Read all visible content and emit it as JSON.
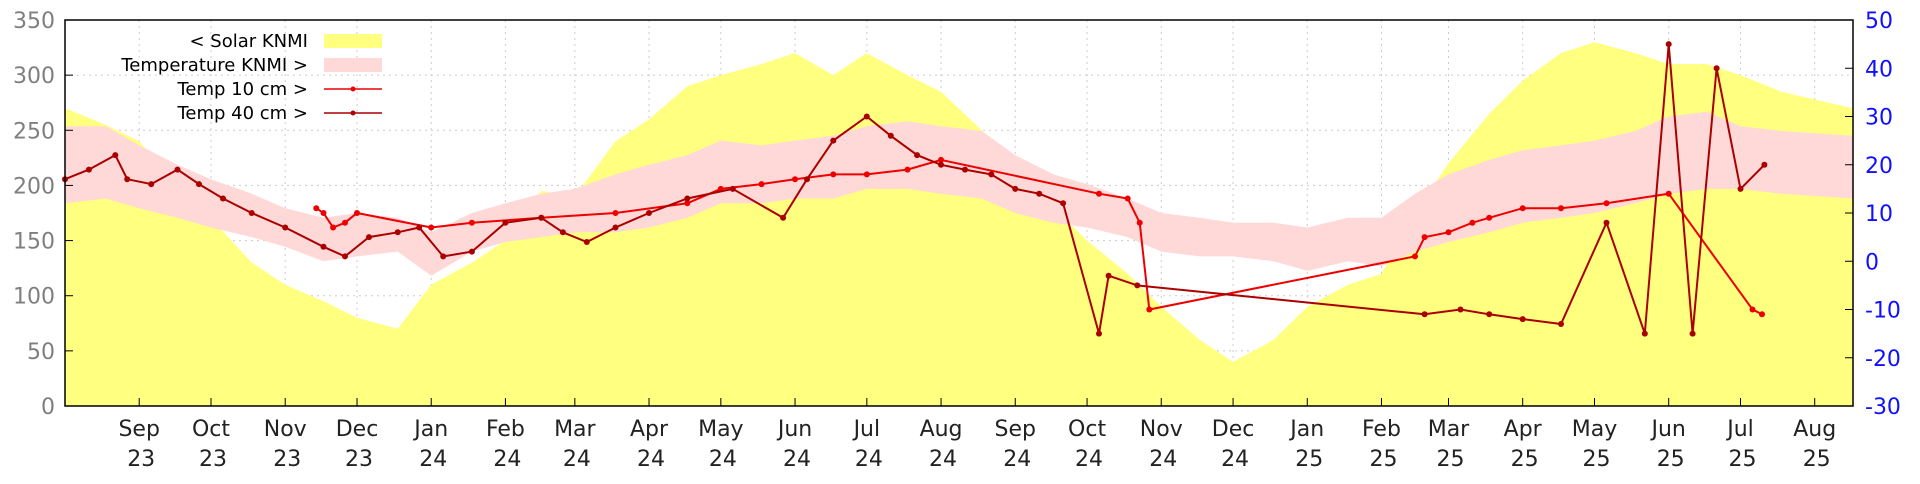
{
  "chart_data": {
    "type": "line",
    "title": "",
    "xlabel": "",
    "ylabel": "",
    "y2label": "",
    "ylim": [
      0,
      350
    ],
    "y2lim": [
      -30,
      50
    ],
    "y_ticks": [
      0,
      50,
      100,
      150,
      200,
      250,
      300,
      350
    ],
    "y2_ticks": [
      -30,
      -20,
      -10,
      0,
      10,
      20,
      30,
      40,
      50
    ],
    "grid": true,
    "legend_position": "top-left",
    "x_ticks": [
      {
        "label": [
          "Sep",
          "23"
        ],
        "date": "2023-09-15"
      },
      {
        "label": [
          "Oct",
          "23"
        ],
        "date": "2023-10-15"
      },
      {
        "label": [
          "Nov",
          "23"
        ],
        "date": "2023-11-15"
      },
      {
        "label": [
          "Dec",
          "23"
        ],
        "date": "2023-12-15"
      },
      {
        "label": [
          "Jan",
          "24"
        ],
        "date": "2024-01-15"
      },
      {
        "label": [
          "Feb",
          "24"
        ],
        "date": "2024-02-15"
      },
      {
        "label": [
          "Mar",
          "24"
        ],
        "date": "2024-03-15"
      },
      {
        "label": [
          "Apr",
          "24"
        ],
        "date": "2024-04-15"
      },
      {
        "label": [
          "May",
          "24"
        ],
        "date": "2024-05-15"
      },
      {
        "label": [
          "Jun",
          "24"
        ],
        "date": "2024-06-15"
      },
      {
        "label": [
          "Jul",
          "24"
        ],
        "date": "2024-07-15"
      },
      {
        "label": [
          "Aug",
          "24"
        ],
        "date": "2024-08-15"
      },
      {
        "label": [
          "Sep",
          "24"
        ],
        "date": "2024-09-15"
      },
      {
        "label": [
          "Oct",
          "24"
        ],
        "date": "2024-10-15"
      },
      {
        "label": [
          "Nov",
          "24"
        ],
        "date": "2024-11-15"
      },
      {
        "label": [
          "Dec",
          "24"
        ],
        "date": "2024-12-15"
      },
      {
        "label": [
          "Jan",
          "25"
        ],
        "date": "2025-01-15"
      },
      {
        "label": [
          "Feb",
          "25"
        ],
        "date": "2025-02-15"
      },
      {
        "label": [
          "Mar",
          "25"
        ],
        "date": "2025-03-15"
      },
      {
        "label": [
          "Apr",
          "25"
        ],
        "date": "2025-04-15"
      },
      {
        "label": [
          "May",
          "25"
        ],
        "date": "2025-05-15"
      },
      {
        "label": [
          "Jun",
          "25"
        ],
        "date": "2025-06-15"
      },
      {
        "label": [
          "Jul",
          "25"
        ],
        "date": "2025-07-15"
      },
      {
        "label": [
          "Aug",
          "25"
        ],
        "date": "2025-08-15"
      }
    ],
    "x_range": [
      "2023-08-15",
      "2025-08-31"
    ],
    "series": [
      {
        "name": "< Solar KNMI",
        "axis": "left",
        "style": "area",
        "color": "#ffff80",
        "points": [
          [
            "2023-08-15",
            270
          ],
          [
            "2023-09-01",
            255
          ],
          [
            "2023-09-15",
            240
          ],
          [
            "2023-10-01",
            200
          ],
          [
            "2023-10-15",
            170
          ],
          [
            "2023-11-01",
            130
          ],
          [
            "2023-11-15",
            110
          ],
          [
            "2023-12-01",
            95
          ],
          [
            "2023-12-15",
            80
          ],
          [
            "2024-01-01",
            70
          ],
          [
            "2024-01-15",
            110
          ],
          [
            "2024-02-01",
            130
          ],
          [
            "2024-02-15",
            150
          ],
          [
            "2024-03-01",
            195
          ],
          [
            "2024-03-15",
            190
          ],
          [
            "2024-04-01",
            240
          ],
          [
            "2024-04-15",
            260
          ],
          [
            "2024-05-01",
            290
          ],
          [
            "2024-05-15",
            300
          ],
          [
            "2024-06-01",
            310
          ],
          [
            "2024-06-15",
            320
          ],
          [
            "2024-07-01",
            300
          ],
          [
            "2024-07-15",
            320
          ],
          [
            "2024-08-01",
            300
          ],
          [
            "2024-08-15",
            285
          ],
          [
            "2024-09-01",
            250
          ],
          [
            "2024-09-15",
            215
          ],
          [
            "2024-10-01",
            180
          ],
          [
            "2024-10-15",
            150
          ],
          [
            "2024-11-01",
            120
          ],
          [
            "2024-11-15",
            90
          ],
          [
            "2024-12-01",
            60
          ],
          [
            "2024-12-15",
            40
          ],
          [
            "2025-01-01",
            60
          ],
          [
            "2025-01-15",
            90
          ],
          [
            "2025-02-01",
            110
          ],
          [
            "2025-02-15",
            120
          ],
          [
            "2025-03-01",
            175
          ],
          [
            "2025-03-15",
            220
          ],
          [
            "2025-04-01",
            265
          ],
          [
            "2025-04-15",
            295
          ],
          [
            "2025-05-01",
            320
          ],
          [
            "2025-05-15",
            330
          ],
          [
            "2025-06-01",
            320
          ],
          [
            "2025-06-15",
            310
          ],
          [
            "2025-07-01",
            310
          ],
          [
            "2025-07-15",
            300
          ],
          [
            "2025-08-01",
            285
          ],
          [
            "2025-08-31",
            270
          ]
        ]
      },
      {
        "name": "Temperature KNMI >",
        "axis": "right",
        "style": "band",
        "color": "#ffd8d8",
        "points": [
          [
            "2023-08-15",
            12,
            28
          ],
          [
            "2023-09-01",
            13,
            28
          ],
          [
            "2023-09-15",
            11,
            24
          ],
          [
            "2023-10-01",
            9,
            20
          ],
          [
            "2023-10-15",
            7,
            17
          ],
          [
            "2023-11-01",
            5,
            14
          ],
          [
            "2023-11-15",
            3,
            11
          ],
          [
            "2023-12-01",
            0,
            9
          ],
          [
            "2023-12-15",
            1,
            10
          ],
          [
            "2024-01-01",
            2,
            9
          ],
          [
            "2024-01-15",
            -3,
            6
          ],
          [
            "2024-02-01",
            2,
            10
          ],
          [
            "2024-02-15",
            4,
            12
          ],
          [
            "2024-03-01",
            5,
            14
          ],
          [
            "2024-03-15",
            6,
            15
          ],
          [
            "2024-04-01",
            6,
            18
          ],
          [
            "2024-04-15",
            7,
            20
          ],
          [
            "2024-05-01",
            9,
            22
          ],
          [
            "2024-05-15",
            12,
            25
          ],
          [
            "2024-06-01",
            12,
            24
          ],
          [
            "2024-06-15",
            13,
            25
          ],
          [
            "2024-07-01",
            13,
            26
          ],
          [
            "2024-07-15",
            15,
            28
          ],
          [
            "2024-08-01",
            15,
            29
          ],
          [
            "2024-08-15",
            14,
            28
          ],
          [
            "2024-09-01",
            13,
            27
          ],
          [
            "2024-09-15",
            10,
            22
          ],
          [
            "2024-10-01",
            8,
            18
          ],
          [
            "2024-10-15",
            7,
            16
          ],
          [
            "2024-11-01",
            5,
            13
          ],
          [
            "2024-11-15",
            2,
            10
          ],
          [
            "2024-12-01",
            1,
            9
          ],
          [
            "2024-12-15",
            1,
            8
          ],
          [
            "2025-01-01",
            0,
            8
          ],
          [
            "2025-01-15",
            -2,
            7
          ],
          [
            "2025-02-01",
            0,
            9
          ],
          [
            "2025-02-15",
            -1,
            9
          ],
          [
            "2025-03-01",
            2,
            14
          ],
          [
            "2025-03-15",
            4,
            18
          ],
          [
            "2025-04-01",
            6,
            21
          ],
          [
            "2025-04-15",
            8,
            23
          ],
          [
            "2025-05-01",
            9,
            24
          ],
          [
            "2025-05-15",
            10,
            25
          ],
          [
            "2025-06-01",
            12,
            27
          ],
          [
            "2025-06-15",
            14,
            30
          ],
          [
            "2025-07-01",
            15,
            31
          ],
          [
            "2025-07-15",
            15,
            28
          ],
          [
            "2025-08-01",
            14,
            27
          ],
          [
            "2025-08-31",
            13,
            26
          ]
        ]
      },
      {
        "name": "Temp 10 cm >",
        "axis": "right",
        "style": "line-points",
        "color": "#ee0000",
        "points": [
          [
            "2023-11-28",
            11
          ],
          [
            "2023-12-01",
            10
          ],
          [
            "2023-12-05",
            7
          ],
          [
            "2023-12-10",
            8
          ],
          [
            "2023-12-15",
            10
          ],
          [
            "2024-01-15",
            7
          ],
          [
            "2024-02-01",
            8
          ],
          [
            "2024-03-01",
            9
          ],
          [
            "2024-04-01",
            10
          ],
          [
            "2024-05-01",
            12
          ],
          [
            "2024-05-15",
            15
          ],
          [
            "2024-06-01",
            16
          ],
          [
            "2024-06-15",
            17
          ],
          [
            "2024-07-01",
            18
          ],
          [
            "2024-07-15",
            18
          ],
          [
            "2024-08-01",
            19
          ],
          [
            "2024-08-15",
            21
          ],
          [
            "2024-10-20",
            14
          ],
          [
            "2024-11-01",
            13
          ],
          [
            "2024-11-06",
            8
          ],
          [
            "2024-11-10",
            -10
          ],
          [
            "2025-03-01",
            1
          ],
          [
            "2025-03-05",
            5
          ],
          [
            "2025-03-15",
            6
          ],
          [
            "2025-03-25",
            8
          ],
          [
            "2025-04-01",
            9
          ],
          [
            "2025-04-15",
            11
          ],
          [
            "2025-05-01",
            11
          ],
          [
            "2025-05-20",
            12
          ],
          [
            "2025-06-15",
            14
          ],
          [
            "2025-07-20",
            -10
          ],
          [
            "2025-07-24",
            -11
          ]
        ]
      },
      {
        "name": "Temp 40 cm >",
        "axis": "right",
        "style": "line-points",
        "color": "#aa0000",
        "points": [
          [
            "2023-08-15",
            17
          ],
          [
            "2023-08-25",
            19
          ],
          [
            "2023-09-05",
            22
          ],
          [
            "2023-09-10",
            17
          ],
          [
            "2023-09-20",
            16
          ],
          [
            "2023-10-01",
            19
          ],
          [
            "2023-10-10",
            16
          ],
          [
            "2023-10-20",
            13
          ],
          [
            "2023-11-01",
            10
          ],
          [
            "2023-11-15",
            7
          ],
          [
            "2023-12-01",
            3
          ],
          [
            "2023-12-10",
            1
          ],
          [
            "2023-12-20",
            5
          ],
          [
            "2024-01-01",
            6
          ],
          [
            "2024-01-10",
            7
          ],
          [
            "2024-01-20",
            1
          ],
          [
            "2024-02-01",
            2
          ],
          [
            "2024-02-15",
            8
          ],
          [
            "2024-03-01",
            9
          ],
          [
            "2024-03-10",
            6
          ],
          [
            "2024-03-20",
            4
          ],
          [
            "2024-04-01",
            7
          ],
          [
            "2024-04-15",
            10
          ],
          [
            "2024-05-01",
            13
          ],
          [
            "2024-05-20",
            15
          ],
          [
            "2024-06-10",
            9
          ],
          [
            "2024-06-20",
            17
          ],
          [
            "2024-07-01",
            25
          ],
          [
            "2024-07-15",
            30
          ],
          [
            "2024-07-25",
            26
          ],
          [
            "2024-08-05",
            22
          ],
          [
            "2024-08-15",
            20
          ],
          [
            "2024-08-25",
            19
          ],
          [
            "2024-09-05",
            18
          ],
          [
            "2024-09-15",
            15
          ],
          [
            "2024-09-25",
            14
          ],
          [
            "2024-10-05",
            12
          ],
          [
            "2024-10-20",
            -15
          ],
          [
            "2024-10-24",
            -3
          ],
          [
            "2024-11-05",
            -5
          ],
          [
            "2025-03-05",
            -11
          ],
          [
            "2025-03-20",
            -10
          ],
          [
            "2025-04-01",
            -11
          ],
          [
            "2025-04-15",
            -12
          ],
          [
            "2025-05-01",
            -13
          ],
          [
            "2025-05-20",
            8
          ],
          [
            "2025-06-05",
            -15
          ],
          [
            "2025-06-15",
            45
          ],
          [
            "2025-06-25",
            -15
          ],
          [
            "2025-07-05",
            40
          ],
          [
            "2025-07-15",
            15
          ],
          [
            "2025-07-25",
            20
          ]
        ]
      }
    ],
    "legend": [
      {
        "label": "< Solar KNMI",
        "color": "#ffff80",
        "style": "area"
      },
      {
        "label": "Temperature KNMI >",
        "color": "#ffd8d8",
        "style": "area"
      },
      {
        "label": "Temp 10 cm >",
        "color": "#ee0000",
        "style": "line-points"
      },
      {
        "label": "Temp 40 cm >",
        "color": "#aa0000",
        "style": "line-points"
      }
    ]
  }
}
